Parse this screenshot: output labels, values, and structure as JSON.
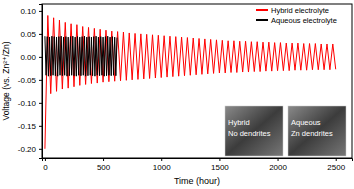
{
  "chart_data": {
    "type": "line",
    "x_label": "Time (hour)",
    "y_label": "Voltage (vs. Zn²⁺/Zn)",
    "xlim": [
      -25,
      2640
    ],
    "ylim": [
      -0.22,
      0.115
    ],
    "xticks": [
      0,
      500,
      1000,
      1500,
      2000,
      2500
    ],
    "yticks": [
      {
        "value": 0.1,
        "label": "0.10"
      },
      {
        "value": 0.05,
        "label": "0.05"
      },
      {
        "value": 0,
        "label": "0.00"
      },
      {
        "value": -0.05,
        "label": "-0.05"
      },
      {
        "value": -0.1,
        "label": "-0.10"
      },
      {
        "value": -0.15,
        "label": "-0.15"
      },
      {
        "value": -0.2,
        "label": "-0.20"
      }
    ],
    "legend": "upper right",
    "annotations": [
      "Hybrid",
      "No dendrites",
      "Aqueous",
      "Zn dendrites"
    ],
    "series": [
      {
        "name": "Hybrid electrolyte",
        "color": "#ff0000",
        "x": [
          0,
          25,
          50,
          75,
          100,
          125,
          150,
          175,
          200,
          225,
          250,
          275,
          300,
          325,
          350,
          375,
          400,
          425,
          450,
          475,
          500,
          525,
          550,
          575,
          600,
          625,
          650,
          675,
          700,
          725,
          750,
          775,
          800,
          825,
          850,
          875,
          900,
          925,
          950,
          975,
          1000,
          1025,
          1050,
          1075,
          1100,
          1125,
          1150,
          1175,
          1200,
          1225,
          1250,
          1275,
          1300,
          1325,
          1350,
          1375,
          1400,
          1425,
          1450,
          1475,
          1500,
          1525,
          1550,
          1575,
          1600,
          1625,
          1650,
          1675,
          1700,
          1725,
          1750,
          1775,
          1800,
          1825,
          1850,
          1875,
          1900,
          1925,
          1950,
          1975,
          2000,
          2025,
          2050,
          2075,
          2100,
          2125,
          2150,
          2175,
          2200,
          2225,
          2250,
          2275,
          2300,
          2325,
          2350,
          2375,
          2400,
          2425,
          2450,
          2475,
          2500
        ],
        "values": [
          -0.2,
          0.09,
          -0.08,
          0.085,
          -0.075,
          0.08,
          -0.07,
          0.075,
          -0.068,
          0.072,
          -0.065,
          0.07,
          -0.062,
          0.066,
          -0.06,
          0.064,
          -0.058,
          0.062,
          -0.057,
          0.06,
          -0.055,
          0.058,
          -0.054,
          0.056,
          -0.053,
          0.055,
          -0.052,
          0.054,
          -0.051,
          0.052,
          -0.05,
          0.051,
          -0.049,
          0.05,
          -0.048,
          0.049,
          -0.047,
          0.048,
          -0.046,
          0.047,
          -0.045,
          0.046,
          -0.044,
          0.045,
          -0.043,
          0.044,
          -0.042,
          0.043,
          -0.041,
          0.042,
          -0.04,
          0.041,
          -0.039,
          0.04,
          -0.038,
          0.039,
          -0.037,
          0.038,
          -0.036,
          0.037,
          -0.035,
          0.036,
          -0.035,
          0.035,
          -0.034,
          0.035,
          -0.034,
          0.034,
          -0.033,
          0.034,
          -0.033,
          0.033,
          -0.032,
          0.033,
          -0.032,
          0.032,
          -0.031,
          0.032,
          -0.031,
          0.031,
          -0.03,
          0.031,
          -0.03,
          0.03,
          -0.03,
          0.03,
          -0.029,
          0.03,
          -0.029,
          0.029,
          -0.029,
          0.029,
          -0.028,
          0.029,
          -0.028,
          0.028,
          -0.028,
          0.028,
          -0.028,
          0.028,
          -0.027
        ]
      },
      {
        "name": "Aqueous electrolyte",
        "color": "#000000",
        "x": [
          0,
          10,
          20,
          30,
          40,
          50,
          60,
          70,
          80,
          90,
          100,
          110,
          120,
          130,
          140,
          150,
          160,
          170,
          180,
          190,
          200,
          210,
          220,
          230,
          240,
          250,
          260,
          270,
          280,
          290,
          300,
          310,
          320,
          330,
          340,
          350,
          360,
          370,
          380,
          390,
          400,
          410,
          420,
          430,
          440,
          450,
          460,
          470,
          480,
          490,
          500,
          510,
          520,
          530,
          540,
          550,
          560,
          570,
          580,
          590,
          600,
          610,
          620
        ],
        "values": [
          0.045,
          -0.04,
          0.044,
          -0.042,
          0.043,
          -0.041,
          0.045,
          -0.04,
          0.044,
          -0.041,
          0.043,
          -0.042,
          0.044,
          -0.04,
          0.045,
          -0.041,
          0.043,
          -0.04,
          0.044,
          -0.042,
          0.043,
          -0.041,
          0.044,
          -0.04,
          0.045,
          -0.041,
          0.043,
          -0.042,
          0.044,
          -0.04,
          0.043,
          -0.041,
          0.044,
          -0.04,
          0.045,
          -0.042,
          0.043,
          -0.041,
          0.044,
          -0.04,
          0.043,
          -0.041,
          0.044,
          -0.042,
          0.045,
          -0.04,
          0.043,
          -0.041,
          0.044,
          -0.04,
          0.043,
          -0.042,
          0.044,
          -0.041,
          0.045,
          -0.04,
          0.043,
          -0.041,
          0.044,
          -0.04,
          0.043,
          -0.041,
          0.042
        ]
      }
    ]
  }
}
